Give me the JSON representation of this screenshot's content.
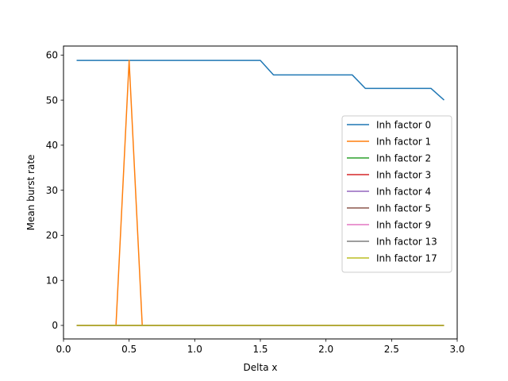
{
  "chart_data": {
    "type": "line",
    "title": "",
    "xlabel": "Delta x",
    "ylabel": "Mean burst rate",
    "xlim": [
      0.0,
      3.0
    ],
    "ylim": [
      -3.0,
      62.0
    ],
    "xticks": [
      0.0,
      0.5,
      1.0,
      1.5,
      2.0,
      2.5,
      3.0
    ],
    "xtick_labels": [
      "0.0",
      "0.5",
      "1.0",
      "1.5",
      "2.0",
      "2.5",
      "3.0"
    ],
    "yticks": [
      0,
      10,
      20,
      30,
      40,
      50,
      60
    ],
    "ytick_labels": [
      "0",
      "10",
      "20",
      "30",
      "40",
      "50",
      "60"
    ],
    "grid": false,
    "legend_position": "center-right",
    "x": [
      0.1,
      0.2,
      0.3,
      0.4,
      0.5,
      0.6,
      0.7,
      0.8,
      0.9,
      1.0,
      1.1,
      1.2,
      1.3,
      1.4,
      1.5,
      1.6,
      1.7,
      1.8,
      1.9,
      2.0,
      2.1,
      2.2,
      2.3,
      2.4,
      2.5,
      2.6,
      2.7,
      2.8,
      2.9
    ],
    "series": [
      {
        "name": "Inh factor 0",
        "color": "#1f77b4",
        "values": [
          58.8,
          58.8,
          58.8,
          58.8,
          58.8,
          58.8,
          58.8,
          58.8,
          58.8,
          58.8,
          58.8,
          58.8,
          58.8,
          58.8,
          58.8,
          55.6,
          55.6,
          55.6,
          55.6,
          55.6,
          55.6,
          55.6,
          52.6,
          52.6,
          52.6,
          52.6,
          52.6,
          52.6,
          50.0
        ]
      },
      {
        "name": "Inh factor 1",
        "color": "#ff7f0e",
        "values": [
          0,
          0,
          0,
          0,
          58.8,
          0,
          0,
          0,
          0,
          0,
          0,
          0,
          0,
          0,
          0,
          0,
          0,
          0,
          0,
          0,
          0,
          0,
          0,
          0,
          0,
          0,
          0,
          0,
          0
        ]
      },
      {
        "name": "Inh factor 2",
        "color": "#2ca02c",
        "values": [
          0,
          0,
          0,
          0,
          0,
          0,
          0,
          0,
          0,
          0,
          0,
          0,
          0,
          0,
          0,
          0,
          0,
          0,
          0,
          0,
          0,
          0,
          0,
          0,
          0,
          0,
          0,
          0,
          0
        ]
      },
      {
        "name": "Inh factor 3",
        "color": "#d62728",
        "values": [
          0,
          0,
          0,
          0,
          0,
          0,
          0,
          0,
          0,
          0,
          0,
          0,
          0,
          0,
          0,
          0,
          0,
          0,
          0,
          0,
          0,
          0,
          0,
          0,
          0,
          0,
          0,
          0,
          0
        ]
      },
      {
        "name": "Inh factor 4",
        "color": "#9467bd",
        "values": [
          0,
          0,
          0,
          0,
          0,
          0,
          0,
          0,
          0,
          0,
          0,
          0,
          0,
          0,
          0,
          0,
          0,
          0,
          0,
          0,
          0,
          0,
          0,
          0,
          0,
          0,
          0,
          0,
          0
        ]
      },
      {
        "name": "Inh factor 5",
        "color": "#8c564b",
        "values": [
          0,
          0,
          0,
          0,
          0,
          0,
          0,
          0,
          0,
          0,
          0,
          0,
          0,
          0,
          0,
          0,
          0,
          0,
          0,
          0,
          0,
          0,
          0,
          0,
          0,
          0,
          0,
          0,
          0
        ]
      },
      {
        "name": "Inh factor 9",
        "color": "#e377c2",
        "values": [
          0,
          0,
          0,
          0,
          0,
          0,
          0,
          0,
          0,
          0,
          0,
          0,
          0,
          0,
          0,
          0,
          0,
          0,
          0,
          0,
          0,
          0,
          0,
          0,
          0,
          0,
          0,
          0,
          0
        ]
      },
      {
        "name": "Inh factor 13",
        "color": "#7f7f7f",
        "values": [
          0,
          0,
          0,
          0,
          0,
          0,
          0,
          0,
          0,
          0,
          0,
          0,
          0,
          0,
          0,
          0,
          0,
          0,
          0,
          0,
          0,
          0,
          0,
          0,
          0,
          0,
          0,
          0,
          0
        ]
      },
      {
        "name": "Inh factor 17",
        "color": "#bcbd22",
        "values": [
          0,
          0,
          0,
          0,
          0,
          0,
          0,
          0,
          0,
          0,
          0,
          0,
          0,
          0,
          0,
          0,
          0,
          0,
          0,
          0,
          0,
          0,
          0,
          0,
          0,
          0,
          0,
          0,
          0
        ]
      }
    ]
  }
}
